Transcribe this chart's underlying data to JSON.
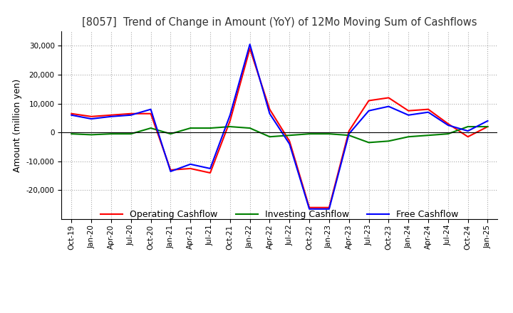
{
  "title": "[8057]  Trend of Change in Amount (YoY) of 12Mo Moving Sum of Cashflows",
  "ylabel": "Amount (million yen)",
  "x_labels": [
    "Oct-19",
    "Jan-20",
    "Apr-20",
    "Jul-20",
    "Oct-20",
    "Jan-21",
    "Apr-21",
    "Jul-21",
    "Oct-21",
    "Jan-22",
    "Apr-22",
    "Jul-22",
    "Oct-22",
    "Jan-23",
    "Apr-23",
    "Jul-23",
    "Oct-23",
    "Jan-24",
    "Apr-24",
    "Jul-24",
    "Oct-24",
    "Jan-25"
  ],
  "operating": [
    6500,
    5500,
    6000,
    6500,
    6500,
    -13000,
    -12500,
    -14000,
    4000,
    29000,
    8000,
    -3000,
    -26000,
    -26000,
    500,
    11000,
    12000,
    7500,
    8000,
    3000,
    -1500,
    2000
  ],
  "investing": [
    -500,
    -800,
    -500,
    -500,
    1500,
    -500,
    1500,
    1500,
    2000,
    1500,
    -1500,
    -1000,
    -500,
    -500,
    -1000,
    -3500,
    -3000,
    -1500,
    -1000,
    -500,
    2000,
    2000
  ],
  "free": [
    6000,
    4700,
    5500,
    6000,
    8000,
    -13500,
    -11000,
    -12500,
    6000,
    30500,
    6500,
    -4000,
    -26500,
    -26500,
    -500,
    7500,
    9000,
    6000,
    7000,
    2500,
    500,
    4000
  ],
  "operating_color": "#ff0000",
  "investing_color": "#008000",
  "free_color": "#0000ff",
  "ylim": [
    -30000,
    35000
  ],
  "yticks": [
    -20000,
    -10000,
    0,
    10000,
    20000,
    30000
  ],
  "background_color": "#ffffff",
  "grid_color": "#aaaaaa"
}
